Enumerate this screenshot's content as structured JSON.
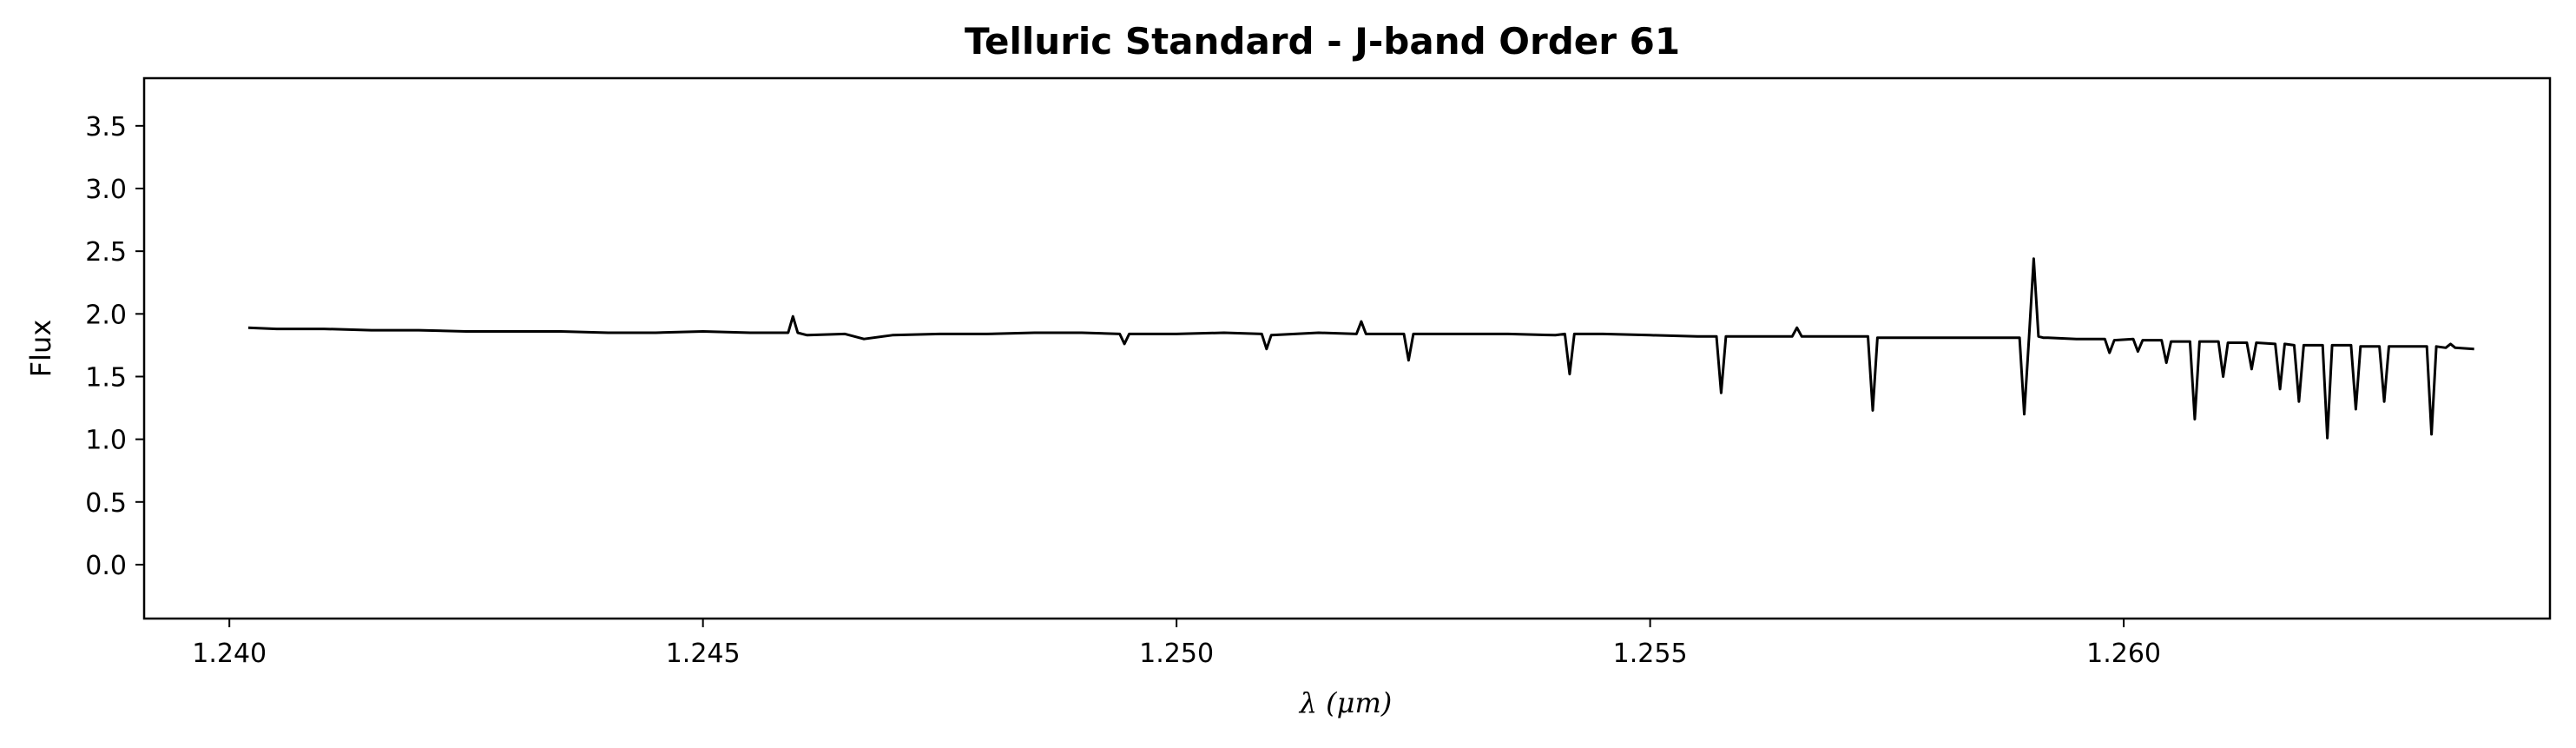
{
  "chart_data": {
    "type": "line",
    "title": "Telluric Standard - J-band Order 61",
    "xlabel": "λ (μm)",
    "ylabel": "Flux",
    "xlim": [
      1.2391,
      1.2645
    ],
    "ylim": [
      -0.43,
      3.88
    ],
    "xticks": [
      1.24,
      1.245,
      1.25,
      1.255,
      1.26
    ],
    "xtick_labels": [
      "1.240",
      "1.245",
      "1.250",
      "1.255",
      "1.260"
    ],
    "yticks": [
      0.0,
      0.5,
      1.0,
      1.5,
      2.0,
      2.5,
      3.0,
      3.5
    ],
    "ytick_labels": [
      "0.0",
      "0.5",
      "1.0",
      "1.5",
      "2.0",
      "2.5",
      "3.0",
      "3.5"
    ],
    "grid": false,
    "line_color": "#000000",
    "series": [
      {
        "x": [
          1.2402,
          1.2405,
          1.241,
          1.2415,
          1.242,
          1.2425,
          1.243,
          1.2435,
          1.244,
          1.2445,
          1.245,
          1.2455,
          1.2459,
          1.24595,
          1.246,
          1.24605,
          1.2461,
          1.2465,
          1.2467,
          1.247,
          1.2475,
          1.248,
          1.2485,
          1.249,
          1.2494,
          1.24945,
          1.2495,
          1.25,
          1.2505,
          1.2509,
          1.25095,
          1.251,
          1.2515,
          1.2519,
          1.25195,
          1.252,
          1.2524,
          1.25245,
          1.2525,
          1.253,
          1.2535,
          1.254,
          1.2541,
          1.25415,
          1.2542,
          1.2545,
          1.255,
          1.2555,
          1.2557,
          1.25575,
          1.2558,
          1.2565,
          1.25655,
          1.2566,
          1.257,
          1.2573,
          1.25735,
          1.2574,
          1.258,
          1.2585,
          1.2589,
          1.25895,
          1.259,
          1.25905,
          1.2591,
          1.25915,
          1.2592,
          1.2595,
          1.2598,
          1.25985,
          1.2599,
          1.2601,
          1.26015,
          1.2602,
          1.2604,
          1.26045,
          1.2605,
          1.2607,
          1.26075,
          1.2608,
          1.261,
          1.26105,
          1.2611,
          1.2613,
          1.26135,
          1.2614,
          1.2616,
          1.26165,
          1.2617,
          1.2618,
          1.26185,
          1.2619,
          1.2621,
          1.26215,
          1.2622,
          1.2624,
          1.26245,
          1.2625,
          1.2627,
          1.26275,
          1.2628,
          1.263,
          1.2632,
          1.26325,
          1.2633,
          1.2634,
          1.26345,
          1.2635,
          1.2637
        ],
        "y": [
          1.89,
          1.88,
          1.88,
          1.87,
          1.87,
          1.86,
          1.86,
          1.86,
          1.85,
          1.85,
          1.86,
          1.85,
          1.85,
          1.98,
          1.85,
          1.84,
          1.83,
          1.84,
          1.8,
          1.83,
          1.84,
          1.84,
          1.85,
          1.85,
          1.84,
          1.76,
          1.84,
          1.84,
          1.85,
          1.84,
          1.72,
          1.83,
          1.85,
          1.84,
          1.94,
          1.84,
          1.84,
          1.63,
          1.84,
          1.84,
          1.84,
          1.83,
          1.84,
          1.52,
          1.84,
          1.84,
          1.83,
          1.82,
          1.82,
          1.37,
          1.82,
          1.82,
          1.89,
          1.82,
          1.82,
          1.82,
          1.23,
          1.81,
          1.81,
          1.81,
          1.81,
          1.2,
          1.81,
          2.44,
          1.82,
          1.81,
          1.81,
          1.8,
          1.8,
          1.69,
          1.79,
          1.8,
          1.7,
          1.79,
          1.79,
          1.61,
          1.78,
          1.78,
          1.16,
          1.78,
          1.78,
          1.5,
          1.77,
          1.77,
          1.56,
          1.77,
          1.76,
          1.4,
          1.76,
          1.75,
          1.3,
          1.75,
          1.75,
          1.01,
          1.75,
          1.75,
          1.24,
          1.74,
          1.74,
          1.3,
          1.74,
          1.74,
          1.74,
          1.04,
          1.74,
          1.73,
          1.76,
          1.73,
          1.72
        ]
      }
    ]
  }
}
